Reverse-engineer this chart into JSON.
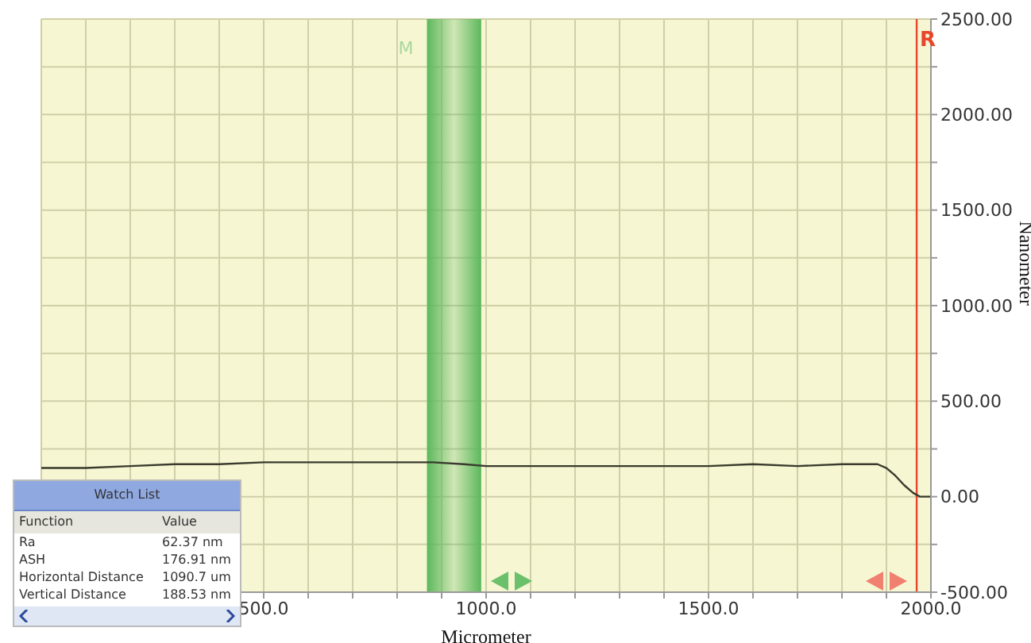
{
  "chart_data": {
    "type": "line",
    "xlabel": "Micrometer",
    "ylabel": "Nanometer",
    "x": [
      0,
      100,
      200,
      300,
      400,
      500,
      600,
      700,
      800,
      880,
      950,
      1000,
      1100,
      1200,
      1300,
      1400,
      1500,
      1600,
      1700,
      1800,
      1880,
      1900,
      1920,
      1940,
      1960,
      1975,
      2000
    ],
    "series": [
      {
        "color": "#3a3a2e",
        "values": [
          150,
          150,
          160,
          170,
          170,
          180,
          180,
          180,
          180,
          180,
          170,
          160,
          160,
          160,
          160,
          160,
          160,
          170,
          160,
          170,
          170,
          150,
          110,
          60,
          20,
          0,
          0
        ]
      }
    ],
    "xlim": [
      0,
      2000
    ],
    "xticks": [
      {
        "value": 0,
        "label": null
      },
      {
        "value": 100,
        "label": null
      },
      {
        "value": 200,
        "label": null
      },
      {
        "value": 300,
        "label": null
      },
      {
        "value": 400,
        "label": null
      },
      {
        "value": 500,
        "label": "500.0"
      },
      {
        "value": 600,
        "label": null
      },
      {
        "value": 700,
        "label": null
      },
      {
        "value": 800,
        "label": null
      },
      {
        "value": 900,
        "label": null
      },
      {
        "value": 1000,
        "label": "1000.0"
      },
      {
        "value": 1100,
        "label": null
      },
      {
        "value": 1200,
        "label": null
      },
      {
        "value": 1300,
        "label": null
      },
      {
        "value": 1400,
        "label": null
      },
      {
        "value": 1500,
        "label": "1500.0"
      },
      {
        "value": 1600,
        "label": null
      },
      {
        "value": 1700,
        "label": null
      },
      {
        "value": 1800,
        "label": null
      },
      {
        "value": 1900,
        "label": null
      },
      {
        "value": 2000,
        "label": "2000.0"
      }
    ],
    "ylim": [
      -500,
      2500
    ],
    "yticks": [
      {
        "value": -500,
        "label": "-500.00"
      },
      {
        "value": -250,
        "label": null
      },
      {
        "value": 0,
        "label": "0.00"
      },
      {
        "value": 250,
        "label": null
      },
      {
        "value": 500,
        "label": "500.00"
      },
      {
        "value": 750,
        "label": null
      },
      {
        "value": 1000,
        "label": "1000.00"
      },
      {
        "value": 1250,
        "label": null
      },
      {
        "value": 1500,
        "label": "1500.00"
      },
      {
        "value": 1750,
        "label": null
      },
      {
        "value": 2000,
        "label": "2000.00"
      },
      {
        "value": 2250,
        "label": null
      },
      {
        "value": 2500,
        "label": "2500.00"
      }
    ],
    "grid": true,
    "marker": "none",
    "line_style": "solid",
    "bands": [
      {
        "axis": "x",
        "from": 867,
        "to": 989,
        "label": "M",
        "color": "#5cb85c"
      }
    ],
    "ref_lines": [
      {
        "axis": "x",
        "value": 1968,
        "label": "R",
        "color": "#e8452c"
      }
    ],
    "annotations": [
      "Watch List",
      "Function",
      "Value",
      "Ra",
      "62.37 nm",
      "ASH",
      "176.91 nm",
      "Horizontal Distance",
      "1090.7 um",
      "Vertical Distance",
      "188.53 nm"
    ]
  }
}
